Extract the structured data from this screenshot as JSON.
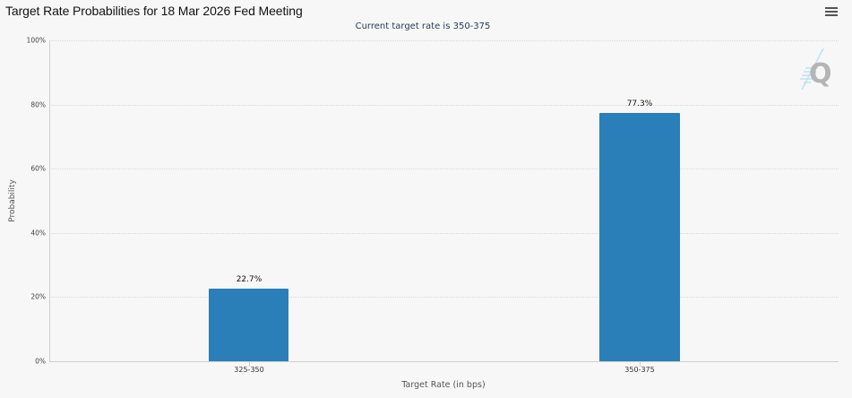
{
  "header": {
    "title": "Target Rate Probabilities for 18 Mar 2026 Fed Meeting",
    "subtitle": "Current target rate is 350-375",
    "menu_icon": "hamburger-menu-icon"
  },
  "watermark": {
    "icon": "q-logo-icon",
    "letter": "Q"
  },
  "axes": {
    "y_title": "Probability",
    "x_title": "Target Rate (in bps)",
    "y_ticks": [
      "0%",
      "20%",
      "40%",
      "60%",
      "80%",
      "100%"
    ]
  },
  "bars": [
    {
      "category": "325-350",
      "value": 22.7,
      "label": "22.7%"
    },
    {
      "category": "350-375",
      "value": 77.3,
      "label": "77.3%"
    }
  ],
  "colors": {
    "bar": "#2a7fb8",
    "background": "#f7f7f7"
  },
  "chart_data": {
    "type": "bar",
    "title": "Target Rate Probabilities for 18 Mar 2026 Fed Meeting",
    "subtitle": "Current target rate is 350-375",
    "categories": [
      "325-350",
      "350-375"
    ],
    "values": [
      22.7,
      77.3
    ],
    "data_labels": [
      "22.7%",
      "77.3%"
    ],
    "xlabel": "Target Rate (in bps)",
    "ylabel": "Probability",
    "ylim": [
      0,
      100
    ],
    "y_tick_labels": [
      "0%",
      "20%",
      "40%",
      "60%",
      "80%",
      "100%"
    ],
    "grid": true,
    "legend": null
  }
}
